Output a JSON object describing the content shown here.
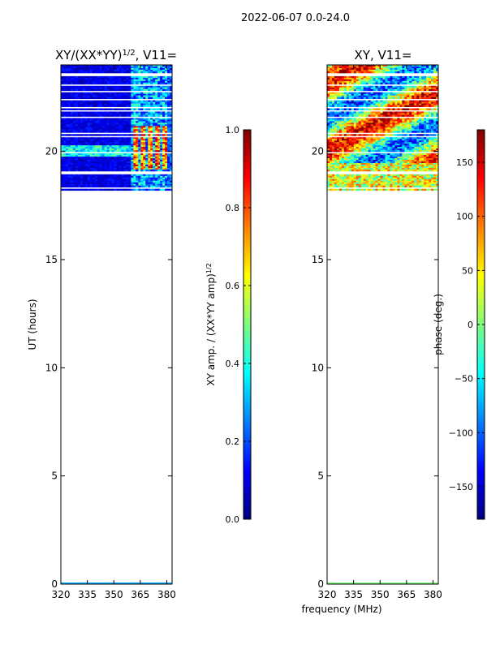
{
  "suptitle": "2022-06-07 0.0-24.0",
  "xlabel": "frequency (MHz)",
  "colormap": [
    "#00007f",
    "#0000ff",
    "#007fff",
    "#00ffff",
    "#7fff7f",
    "#ffff00",
    "#ff7f00",
    "#ff0000",
    "#7f0000"
  ],
  "chart_data": [
    {
      "type": "heatmap",
      "title_main": "XY/(XX*YY)",
      "title_sup": "1/2",
      "title_tail": ", V11=",
      "xlabel": "",
      "ylabel": "UT (hours)",
      "x_ticks": [
        320,
        335,
        350,
        365,
        380
      ],
      "y_ticks": [
        0,
        5,
        10,
        15,
        20
      ],
      "xlim": [
        320,
        383
      ],
      "ylim": [
        0,
        24
      ],
      "data_span_hours": [
        18.2,
        24.0
      ],
      "colorbar": {
        "label": "XY amp. / (XX*YY amp)",
        "label_sup": "1/2",
        "range": [
          0.0,
          1.0
        ],
        "ticks": [
          "0.0",
          "0.2",
          "0.4",
          "0.6",
          "0.8",
          "1.0"
        ]
      }
    },
    {
      "type": "heatmap",
      "title_main": "XY, V11=",
      "title_sup": "",
      "title_tail": "",
      "xlabel": "frequency (MHz)",
      "ylabel": "",
      "x_ticks": [
        320,
        335,
        350,
        365,
        380
      ],
      "y_ticks": [
        0,
        5,
        10,
        15,
        20
      ],
      "xlim": [
        320,
        383
      ],
      "ylim": [
        0,
        24
      ],
      "data_span_hours": [
        18.2,
        24.0
      ],
      "colorbar": {
        "label": "phase (deg.)",
        "range": [
          -180,
          180
        ],
        "ticks": [
          "-150",
          "-100",
          "-50",
          "0",
          "50",
          "100",
          "150"
        ]
      }
    }
  ]
}
